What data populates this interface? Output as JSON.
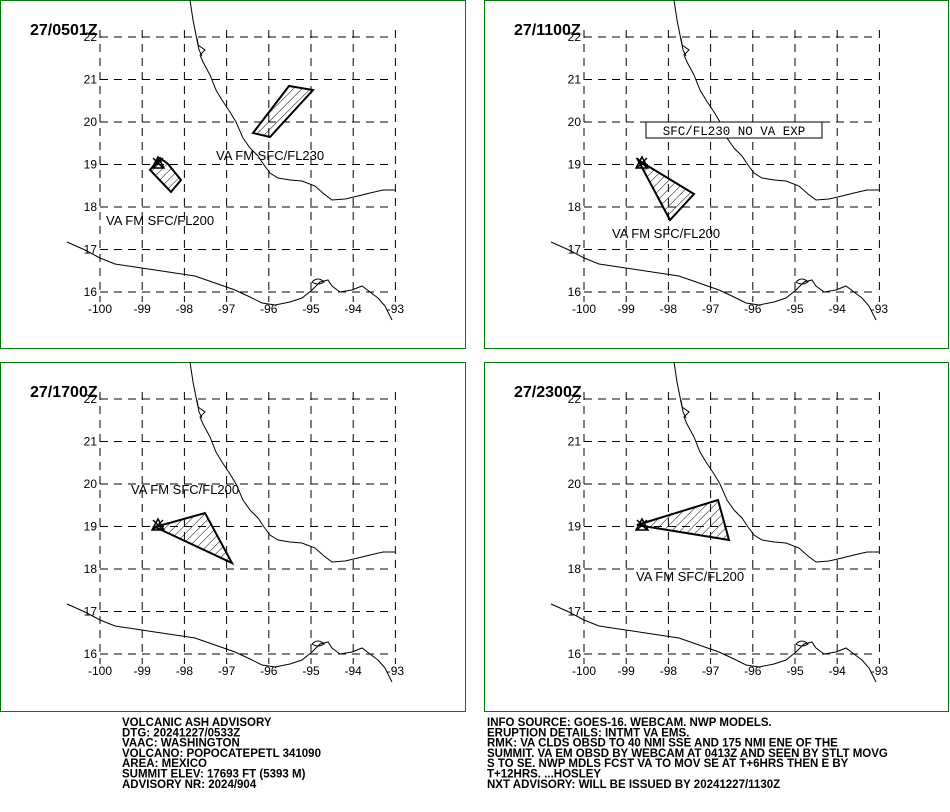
{
  "panels": [
    {
      "time": "27/0501Z",
      "labels": [
        "VA FM SFC/FL230",
        "VA FM SFC/FL200"
      ]
    },
    {
      "time": "27/1100Z",
      "labels": [
        "SFC/FL230 NO VA EXP",
        "VA FM SFC/FL200"
      ]
    },
    {
      "time": "27/1700Z",
      "labels": [
        "VA FM SFC/FL200"
      ]
    },
    {
      "time": "27/2300Z",
      "labels": [
        "VA FM SFC/FL200"
      ]
    }
  ],
  "lat_ticks": [
    "22",
    "21",
    "20",
    "19",
    "18",
    "17",
    "16"
  ],
  "lon_ticks": [
    "-100",
    "-99",
    "-98",
    "-97",
    "-96",
    "-95",
    "-94",
    "-93"
  ],
  "advisory": [
    "VOLCANIC ASH ADVISORY",
    "DTG: 20241227/0533Z",
    "VAAC: WASHINGTON",
    "VOLCANO: POPOCATEPETL 341090",
    "AREA: MEXICO",
    "SUMMIT ELEV: 17693 FT (5393 M)",
    "ADVISORY NR: 2024/904"
  ],
  "remarks": [
    "INFO SOURCE: GOES-16. WEBCAM. NWP MODELS.",
    "ERUPTION DETAILS: INTMT VA EMS.",
    "RMK: VA CLDS OBSD TO 40 NMI SSE AND 175 NMI ENE OF THE",
    "SUMMIT. VA EM OBSD BY WEBCAM AT 0413Z AND SEEN BY STLT MOVG",
    "S TO SE. NWP MDLS FCST VA TO MOV SE AT T+6HRS THEN E BY",
    "T+12HRS. ...HOSLEY",
    "NXT ADVISORY: WILL BE ISSUED BY 20241227/1130Z"
  ]
}
